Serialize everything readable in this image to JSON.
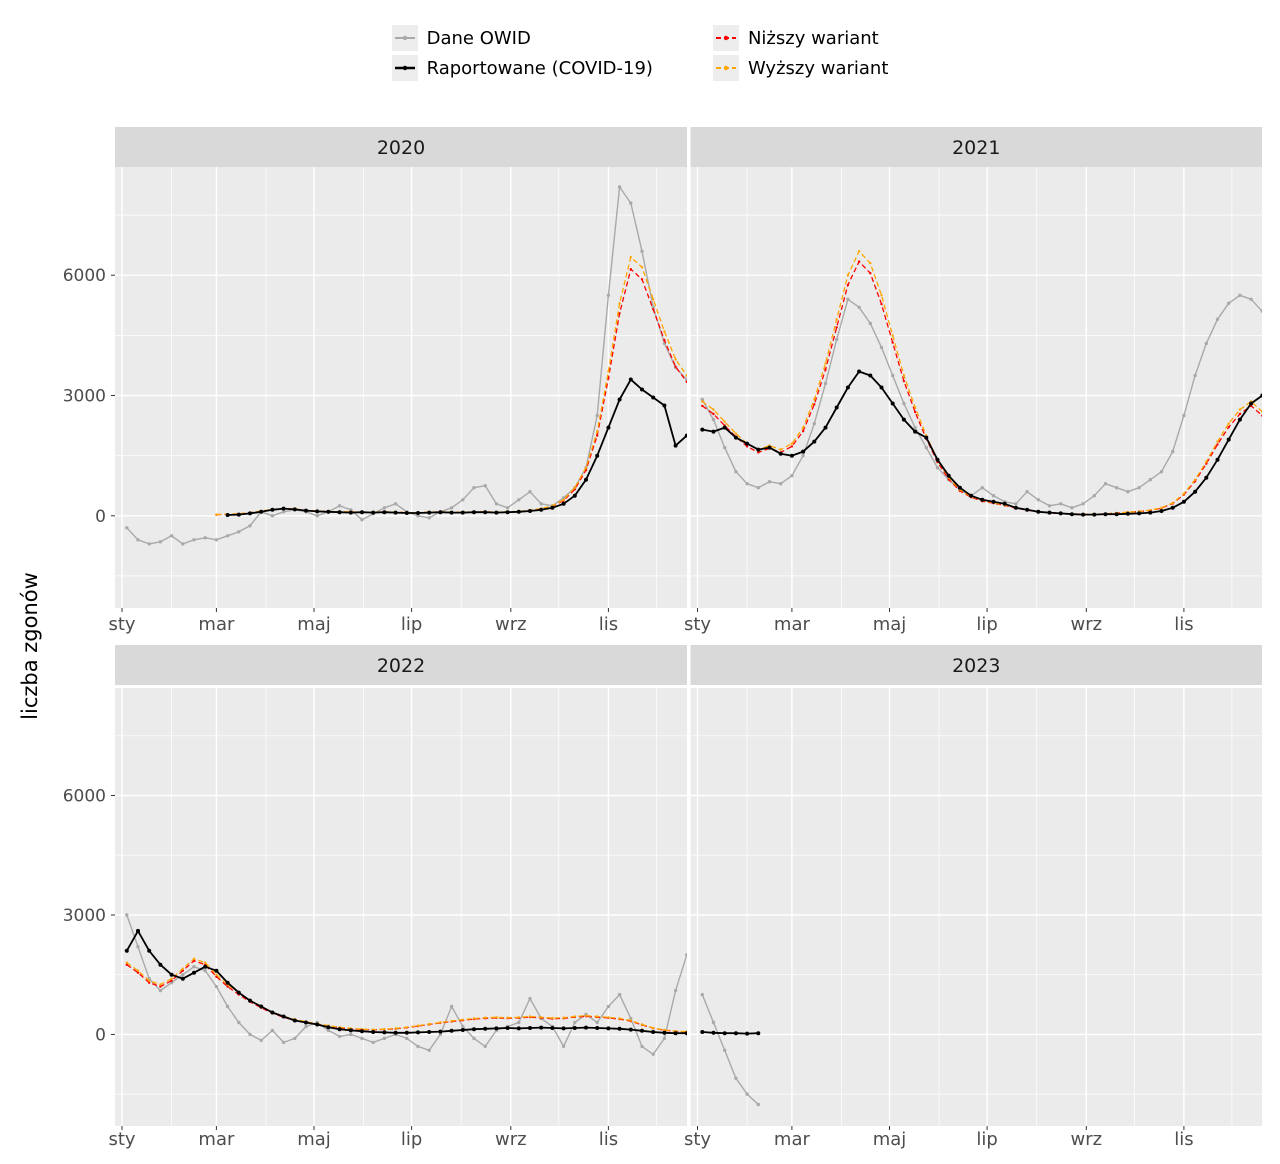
{
  "chart_data": {
    "type": "line",
    "title": "",
    "xlabel": "",
    "ylabel": "liczba zgonów",
    "ylim": [
      -2300,
      8700
    ],
    "yticks": [
      0,
      3000,
      6000
    ],
    "yticks_minor": [
      -1500,
      1500,
      4500,
      7500
    ],
    "x_unit": "week of year (values are weekly death counts)",
    "month_ticks": {
      "labels": [
        "sty",
        "mar",
        "maj",
        "lip",
        "wrz",
        "lis"
      ],
      "day_of_year": [
        0,
        59,
        120,
        181,
        243,
        304
      ],
      "minor_day_of_year": [
        31,
        90,
        151,
        212,
        273,
        334
      ]
    },
    "colors": {
      "background": "#FFFFFF",
      "panel_bg": "#EBEBEB",
      "strip_bg": "#D9D9D9",
      "grid": "#FFFFFF",
      "axis_text": "#4D4D4D",
      "strip_text": "#1A1A1A",
      "tick_mark": "#333333"
    },
    "legend_position": "top",
    "grid": true,
    "draw_order": [
      "owid",
      "lower",
      "upper",
      "reported"
    ],
    "series_meta": [
      {
        "id": "owid",
        "label": "Dane OWID",
        "color": "#A9A9A9",
        "dash": "",
        "width": 1.4,
        "point_r": 1.7
      },
      {
        "id": "reported",
        "label": "Raportowane (COVID-19)",
        "color": "#000000",
        "dash": "",
        "width": 1.8,
        "point_r": 2.0
      },
      {
        "id": "lower",
        "label": "Niższy wariant",
        "color": "#FF0000",
        "dash": "5 3",
        "width": 1.3,
        "point_r": 1.2
      },
      {
        "id": "upper",
        "label": "Wyższy wariant",
        "color": "#FFA500",
        "dash": "5 3",
        "width": 1.3,
        "point_r": 1.2
      }
    ],
    "facets": [
      {
        "year": "2020",
        "series": {
          "owid": {
            "start_week": 1,
            "values": [
              -300,
              -600,
              -700,
              -650,
              -500,
              -700,
              -600,
              -550,
              -600,
              -500,
              -400,
              -250,
              100,
              0,
              100,
              150,
              100,
              0,
              100,
              250,
              150,
              -100,
              50,
              200,
              300,
              100,
              0,
              -50,
              100,
              200,
              400,
              700,
              750,
              300,
              200,
              400,
              600,
              300,
              250,
              450,
              700,
              1200,
              2500,
              5500,
              8200,
              7800,
              6600,
              5200,
              4300,
              3700,
              3400,
              3300
            ]
          },
          "reported": {
            "start_week": 10,
            "values": [
              20,
              30,
              60,
              100,
              150,
              180,
              160,
              130,
              110,
              100,
              90,
              80,
              90,
              80,
              90,
              80,
              70,
              70,
              80,
              90,
              80,
              80,
              90,
              90,
              80,
              90,
              100,
              120,
              150,
              200,
              300,
              500,
              900,
              1500,
              2200,
              2900,
              3400,
              3150,
              2950,
              2750,
              1750,
              2000
            ]
          },
          "lower": {
            "start_week": 9,
            "values": [
              28,
              38,
              48,
              76,
              114,
              152,
              172,
              162,
              134,
              114,
              105,
              95,
              95,
              86,
              86,
              95,
              86,
              76,
              76,
              86,
              95,
              86,
              86,
              95,
              95,
              86,
              95,
              105,
              134,
              172,
              240,
              380,
              660,
              1140,
              2000,
              3430,
              5050,
              6150,
              5900,
              5150,
              4380,
              3720,
              3340
            ]
          },
          "upper": {
            "start_week": 9,
            "values": [
              30,
              40,
              50,
              80,
              120,
              160,
              180,
              170,
              140,
              120,
              110,
              100,
              100,
              90,
              90,
              100,
              90,
              80,
              80,
              90,
              100,
              90,
              90,
              100,
              100,
              90,
              100,
              110,
              140,
              180,
              250,
              400,
              700,
              1200,
              2100,
              3600,
              5300,
              6450,
              6200,
              5400,
              4600,
              3900,
              3500
            ]
          }
        }
      },
      {
        "year": "2021",
        "series": {
          "owid": {
            "start_week": 1,
            "values": [
              2900,
              2400,
              1700,
              1100,
              800,
              700,
              850,
              800,
              1000,
              1500,
              2300,
              3300,
              4400,
              5400,
              5200,
              4800,
              4200,
              3500,
              2800,
              2200,
              1700,
              1200,
              900,
              650,
              500,
              700,
              500,
              350,
              300,
              600,
              400,
              250,
              300,
              200,
              300,
              500,
              800,
              700,
              600,
              700,
              900,
              1100,
              1600,
              2500,
              3500,
              4300,
              4900,
              5300,
              5500,
              5400,
              5100,
              4900
            ]
          },
          "reported": {
            "start_week": 1,
            "values": [
              2150,
              2100,
              2200,
              1950,
              1800,
              1650,
              1700,
              1550,
              1500,
              1600,
              1850,
              2200,
              2700,
              3200,
              3600,
              3500,
              3200,
              2800,
              2400,
              2100,
              1950,
              1400,
              1000,
              700,
              500,
              400,
              350,
              300,
              200,
              150,
              100,
              80,
              60,
              40,
              30,
              30,
              40,
              40,
              50,
              60,
              80,
              120,
              200,
              350,
              600,
              950,
              1400,
              1900,
              2400,
              2800,
              3000,
              3250
            ]
          },
          "lower": {
            "start_week": 1,
            "values": [
              2740,
              2540,
              2250,
              1970,
              1730,
              1580,
              1680,
              1580,
              1730,
              2110,
              2780,
              3650,
              4700,
              5760,
              6340,
              6050,
              5280,
              4320,
              3360,
              2590,
              1920,
              1340,
              910,
              620,
              460,
              365,
              315,
              260,
              190,
              145,
              95,
              77,
              58,
              48,
              38,
              38,
              48,
              67,
              86,
              106,
              134,
              192,
              307,
              528,
              864,
              1300,
              1780,
              2210,
              2540,
              2740,
              2500,
              2060
            ]
          },
          "upper": {
            "start_week": 1,
            "values": [
              2850,
              2650,
              2350,
              2050,
              1800,
              1650,
              1750,
              1650,
              1800,
              2200,
              2900,
              3800,
              4900,
              6000,
              6600,
              6300,
              5500,
              4500,
              3500,
              2700,
              2000,
              1400,
              950,
              650,
              480,
              380,
              330,
              270,
              200,
              150,
              100,
              80,
              60,
              50,
              40,
              40,
              50,
              70,
              90,
              110,
              140,
              200,
              320,
              550,
              900,
              1350,
              1850,
              2300,
              2650,
              2850,
              2600,
              2150
            ]
          }
        }
      },
      {
        "year": "2022",
        "series": {
          "owid": {
            "start_week": 1,
            "values": [
              3000,
              2200,
              1400,
              1100,
              1300,
              1500,
              1700,
              1600,
              1200,
              700,
              300,
              0,
              -150,
              100,
              -200,
              -100,
              200,
              300,
              100,
              -50,
              0,
              -100,
              -200,
              -100,
              0,
              -100,
              -300,
              -400,
              0,
              700,
              200,
              -100,
              -300,
              100,
              200,
              300,
              900,
              400,
              200,
              -300,
              300,
              500,
              300,
              700,
              1000,
              400,
              -300,
              -500,
              -100,
              1100,
              2000
            ]
          },
          "reported": {
            "start_week": 1,
            "values": [
              2100,
              2600,
              2100,
              1750,
              1500,
              1400,
              1550,
              1700,
              1600,
              1300,
              1050,
              850,
              700,
              550,
              450,
              350,
              300,
              250,
              180,
              130,
              100,
              80,
              60,
              50,
              40,
              40,
              50,
              60,
              70,
              90,
              110,
              130,
              140,
              150,
              160,
              150,
              160,
              170,
              160,
              150,
              160,
              170,
              160,
              150,
              140,
              120,
              90,
              60,
              40,
              30,
              30,
              30
            ]
          },
          "lower": {
            "start_week": 1,
            "values": [
              1750,
              1550,
              1300,
              1200,
              1350,
              1600,
              1850,
              1750,
              1450,
              1200,
              1000,
              820,
              670,
              530,
              430,
              360,
              300,
              260,
              210,
              170,
              140,
              125,
              115,
              125,
              140,
              170,
              210,
              250,
              290,
              325,
              355,
              385,
              405,
              415,
              405,
              415,
              435,
              415,
              395,
              405,
              435,
              455,
              435,
              415,
              385,
              335,
              240,
              155,
              105,
              75,
              65,
              55
            ]
          },
          "upper": {
            "start_week": 1,
            "values": [
              1800,
              1600,
              1350,
              1250,
              1400,
              1650,
              1900,
              1800,
              1500,
              1250,
              1050,
              850,
              700,
              550,
              450,
              380,
              320,
              270,
              220,
              180,
              150,
              130,
              120,
              130,
              150,
              180,
              220,
              260,
              300,
              340,
              370,
              400,
              420,
              430,
              420,
              430,
              450,
              430,
              410,
              420,
              450,
              470,
              450,
              430,
              400,
              350,
              250,
              160,
              110,
              80,
              70,
              60
            ]
          }
        }
      },
      {
        "year": "2023",
        "series": {
          "owid": {
            "start_week": 1,
            "values": [
              1000,
              300,
              -400,
              -1100,
              -1500,
              -1760
            ]
          },
          "reported": {
            "start_week": 1,
            "values": [
              60,
              40,
              30,
              30,
              20,
              30
            ]
          }
        }
      }
    ]
  }
}
